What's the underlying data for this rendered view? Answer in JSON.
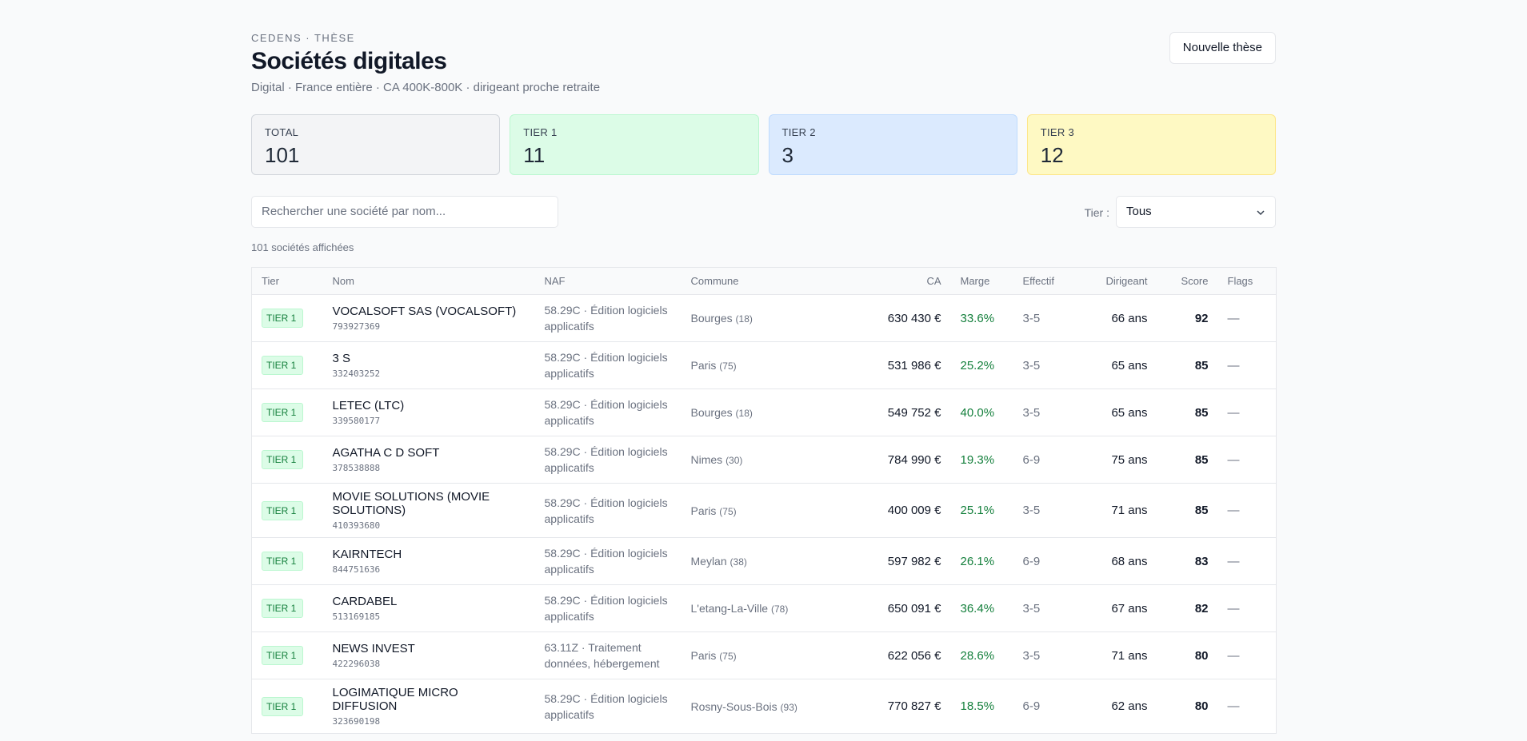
{
  "header": {
    "eyebrow": "CEDENS · THÈSE",
    "title": "Sociétés digitales",
    "subtitle": "Digital · France entière · CA 400K-800K · dirigeant proche retraite",
    "button": "Nouvelle thèse"
  },
  "stats": [
    {
      "label": "TOTAL",
      "value": "101"
    },
    {
      "label": "TIER 1",
      "value": "11"
    },
    {
      "label": "TIER 2",
      "value": "3"
    },
    {
      "label": "TIER 3",
      "value": "12"
    }
  ],
  "filters": {
    "search_placeholder": "Rechercher une société par nom...",
    "tier_label": "Tier :",
    "tier_value": "Tous"
  },
  "count": "101 sociétés affichées",
  "table": {
    "headers": [
      "Tier",
      "Nom",
      "NAF",
      "Commune",
      "CA",
      "Marge",
      "Effectif",
      "Dirigeant",
      "Score",
      "Flags"
    ],
    "rows": [
      {
        "tier": "TIER 1",
        "name": "VOCALSOFT SAS (VOCALSOFT)",
        "siren": "793927369",
        "naf": "58.29C · Édition logiciels applicatifs",
        "commune": "Bourges",
        "dept": "(18)",
        "ca": "630 430 €",
        "marge": "33.6%",
        "effectif": "3-5",
        "dirigeant": "66 ans",
        "score": "92",
        "flags": "—"
      },
      {
        "tier": "TIER 1",
        "name": "3 S",
        "siren": "332403252",
        "naf": "58.29C · Édition logiciels applicatifs",
        "commune": "Paris",
        "dept": "(75)",
        "ca": "531 986 €",
        "marge": "25.2%",
        "effectif": "3-5",
        "dirigeant": "65 ans",
        "score": "85",
        "flags": "—"
      },
      {
        "tier": "TIER 1",
        "name": "LETEC (LTC)",
        "siren": "339580177",
        "naf": "58.29C · Édition logiciels applicatifs",
        "commune": "Bourges",
        "dept": "(18)",
        "ca": "549 752 €",
        "marge": "40.0%",
        "effectif": "3-5",
        "dirigeant": "65 ans",
        "score": "85",
        "flags": "—"
      },
      {
        "tier": "TIER 1",
        "name": "AGATHA C D SOFT",
        "siren": "378538888",
        "naf": "58.29C · Édition logiciels applicatifs",
        "commune": "Nimes",
        "dept": "(30)",
        "ca": "784 990 €",
        "marge": "19.3%",
        "effectif": "6-9",
        "dirigeant": "75 ans",
        "score": "85",
        "flags": "—"
      },
      {
        "tier": "TIER 1",
        "name": "MOVIE SOLUTIONS (MOVIE SOLUTIONS)",
        "siren": "410393680",
        "naf": "58.29C · Édition logiciels applicatifs",
        "commune": "Paris",
        "dept": "(75)",
        "ca": "400 009 €",
        "marge": "25.1%",
        "effectif": "3-5",
        "dirigeant": "71 ans",
        "score": "85",
        "flags": "—"
      },
      {
        "tier": "TIER 1",
        "name": "KAIRNTECH",
        "siren": "844751636",
        "naf": "58.29C · Édition logiciels applicatifs",
        "commune": "Meylan",
        "dept": "(38)",
        "ca": "597 982 €",
        "marge": "26.1%",
        "effectif": "6-9",
        "dirigeant": "68 ans",
        "score": "83",
        "flags": "—"
      },
      {
        "tier": "TIER 1",
        "name": "CARDABEL",
        "siren": "513169185",
        "naf": "58.29C · Édition logiciels applicatifs",
        "commune": "L'etang-La-Ville",
        "dept": "(78)",
        "ca": "650 091 €",
        "marge": "36.4%",
        "effectif": "3-5",
        "dirigeant": "67 ans",
        "score": "82",
        "flags": "—"
      },
      {
        "tier": "TIER 1",
        "name": "NEWS INVEST",
        "siren": "422296038",
        "naf": "63.11Z · Traitement données, hébergement",
        "commune": "Paris",
        "dept": "(75)",
        "ca": "622 056 €",
        "marge": "28.6%",
        "effectif": "3-5",
        "dirigeant": "71 ans",
        "score": "80",
        "flags": "—"
      },
      {
        "tier": "TIER 1",
        "name": "LOGIMATIQUE MICRO DIFFUSION",
        "siren": "323690198",
        "naf": "58.29C · Édition logiciels applicatifs",
        "commune": "Rosny-Sous-Bois",
        "dept": "(93)",
        "ca": "770 827 €",
        "marge": "18.5%",
        "effectif": "6-9",
        "dirigeant": "62 ans",
        "score": "80",
        "flags": "—"
      }
    ]
  }
}
